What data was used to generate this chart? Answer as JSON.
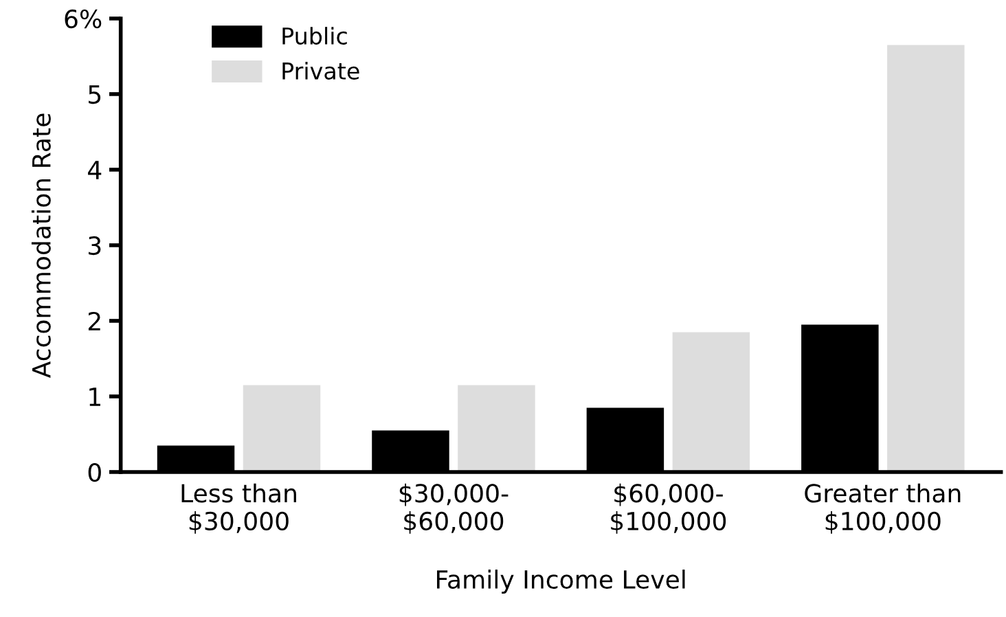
{
  "chart_data": {
    "type": "bar",
    "xlabel": "Family Income Level",
    "ylabel": "Accommodation Rate",
    "categories": [
      "Less than\n$30,000",
      "$30,000-\n$60,000",
      "$60,000-\n$100,000",
      "Greater than\n$100,000"
    ],
    "series": [
      {
        "name": "Public",
        "color": "#000000",
        "values": [
          0.35,
          0.55,
          0.85,
          1.95
        ]
      },
      {
        "name": "Private",
        "color": "#dddddd",
        "values": [
          1.15,
          1.15,
          1.85,
          5.65
        ]
      }
    ],
    "ylim": [
      0,
      6
    ],
    "yticks": [
      0,
      1,
      2,
      3,
      4,
      5,
      {
        "value": 6,
        "label": "6%"
      }
    ],
    "grid": false,
    "legend": "top left"
  }
}
